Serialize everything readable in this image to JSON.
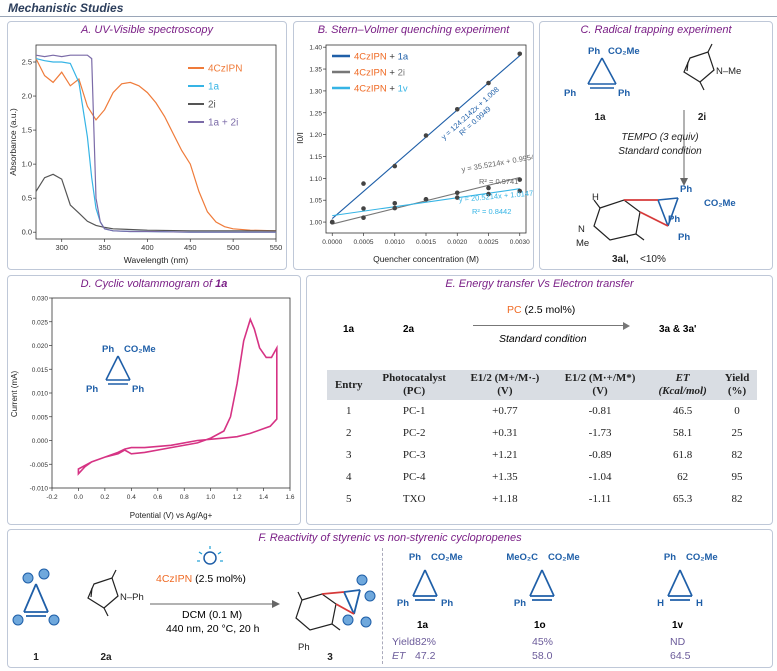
{
  "header": {
    "title": "Mechanistic Studies"
  },
  "panel_a": {
    "title": "A. UV-Visible spectroscopy"
  },
  "panel_b": {
    "title": "B. Stern–Volmer quenching experiment"
  },
  "panel_c": {
    "title": "C. Radical trapping experiment",
    "sub1": "Ph",
    "sub2": "CO₂Me",
    "sub3": "Ph",
    "sub4": "Ph",
    "label_1a": "1a",
    "label_2i": "2i",
    "n_me": "N–Me",
    "reagent": "TEMPO (3 equiv)",
    "condition": "Standard condition",
    "prod_ph1": "Ph",
    "prod_co2me": "CO₂Me",
    "prod_ph2": "Ph",
    "prod_ph3": "Ph",
    "prod_h": "H",
    "prod_n": "N",
    "prod_me": "Me",
    "product_label": "3al,",
    "product_yield": "<10%"
  },
  "panel_d": {
    "title_prefix": "D. Cyclic voltammogram of ",
    "title_bold": "1a",
    "sub1": "Ph",
    "sub2": "CO₂Me",
    "sub3": "Ph",
    "sub4": "Ph"
  },
  "panel_e": {
    "title": "E. Energy transfer Vs Electron transfer",
    "reactant1": "1a",
    "reactant2": "2a",
    "pc_label": "PC",
    "pc_amount": " (2.5 mol%)",
    "condition": "Standard condition",
    "product": "3a & 3a'",
    "table": {
      "headers": [
        {
          "l1": "Entry",
          "l2": ""
        },
        {
          "l1": "Photocatalyst",
          "l2": "(PC)"
        },
        {
          "l1": "E1/2 (M+/M·-)",
          "l2": "(V)"
        },
        {
          "l1": "E1/2 (M·+/M*)",
          "l2": "(V)"
        },
        {
          "l1": "ET",
          "l2": "(Kcal/mol)"
        },
        {
          "l1": "Yield",
          "l2": "(%)"
        }
      ],
      "rows": [
        [
          "1",
          "PC-1",
          "+0.77",
          "-0.81",
          "46.5",
          "0"
        ],
        [
          "2",
          "PC-2",
          "+0.31",
          "-1.73",
          "58.1",
          "25"
        ],
        [
          "3",
          "PC-3",
          "+1.21",
          "-0.89",
          "61.8",
          "82"
        ],
        [
          "4",
          "PC-4",
          "+1.35",
          "-1.04",
          "62",
          "95"
        ],
        [
          "5",
          "TXO",
          "+1.18",
          "-1.11",
          "65.3",
          "82"
        ]
      ]
    }
  },
  "panel_f": {
    "title": "F. Reactivity of styrenic vs non-styrenic cyclopropenes",
    "catalyst": "4CzIPN",
    "catalyst_amount": " (2.5 mol%)",
    "solvent": "DCM (0.1 M)",
    "conditions": "440 nm, 20 °C, 20 h",
    "label_1": "1",
    "label_2a": "2a",
    "label_3": "3",
    "n_ph": "N–Ph",
    "n_ph2": "Ph",
    "yield_label": "Yield",
    "et_label": "ET",
    "compounds": [
      {
        "label": "1a",
        "top_left": "Ph",
        "top_right": "CO₂Me",
        "bottom_left": "Ph",
        "bottom_right": "Ph",
        "yield": "82%",
        "et": "47.2"
      },
      {
        "label": "1o",
        "top_left": "MeO₂C",
        "top_right": "CO₂Me",
        "bottom_left": "Ph",
        "bottom_right": "",
        "yield": "45%",
        "et": "58.0"
      },
      {
        "label": "1v",
        "top_left": "Ph",
        "top_right": "CO₂Me",
        "bottom_left": "H",
        "bottom_right": "H",
        "yield": "ND",
        "et": "64.5"
      }
    ]
  },
  "chart_data": [
    {
      "type": "line",
      "title": "A. UV-Visible spectroscopy",
      "xlabel": "Wavelength (nm)",
      "ylabel": "Absorbance (a.u.)",
      "xlim": [
        270,
        550
      ],
      "ylim": [
        -0.1,
        2.75
      ],
      "xticks": [
        "300",
        "350",
        "400",
        "450",
        "500",
        "550"
      ],
      "yticks": [
        "0.0",
        "0.5",
        "1.0",
        "1.5",
        "2.0",
        "2.5"
      ],
      "series": [
        {
          "name": "4CzIPN",
          "color": "#ef7b3a",
          "x": [
            270,
            280,
            290,
            300,
            310,
            320,
            330,
            340,
            350,
            360,
            370,
            380,
            390,
            400,
            410,
            420,
            430,
            440,
            450,
            460,
            470,
            480,
            490,
            500,
            520,
            550
          ],
          "y": [
            2.55,
            2.3,
            2.2,
            2.35,
            2.15,
            2.25,
            1.85,
            1.65,
            1.8,
            2.05,
            2.18,
            2.2,
            2.15,
            2.05,
            1.9,
            1.7,
            1.45,
            1.2,
            1.0,
            0.6,
            0.3,
            0.15,
            0.08,
            0.05,
            0.03,
            0.02
          ]
        },
        {
          "name": "1a",
          "color": "#36b4e5",
          "x": [
            270,
            280,
            290,
            300,
            310,
            320,
            330,
            335,
            340,
            345,
            350,
            360,
            380,
            400,
            450,
            550
          ],
          "y": [
            2.55,
            2.52,
            2.5,
            2.5,
            2.48,
            2.2,
            1.4,
            0.8,
            0.35,
            0.15,
            0.05,
            0.02,
            0.01,
            0.01,
            0.0,
            0.0
          ]
        },
        {
          "name": "2i",
          "color": "#555555",
          "x": [
            270,
            280,
            290,
            300,
            310,
            320,
            330,
            340,
            350,
            360,
            380,
            400,
            450,
            550
          ],
          "y": [
            0.6,
            0.8,
            0.85,
            0.78,
            0.4,
            0.28,
            0.16,
            0.1,
            0.07,
            0.05,
            0.04,
            0.03,
            0.02,
            0.02
          ]
        },
        {
          "name": "1a + 2i",
          "color": "#7b6ba8",
          "x": [
            270,
            280,
            290,
            300,
            310,
            320,
            330,
            335,
            340,
            345,
            350,
            360,
            380,
            400,
            450,
            550
          ],
          "y": [
            2.6,
            2.58,
            2.6,
            2.58,
            2.6,
            2.6,
            2.6,
            2.55,
            0.5,
            0.15,
            0.05,
            0.02,
            0.01,
            0.01,
            0.0,
            0.0
          ]
        }
      ]
    },
    {
      "type": "scatter",
      "title": "B. Stern–Volmer quenching experiment",
      "xlabel": "Quencher concentration (M)",
      "ylabel": "I0/I",
      "xlim": [
        -0.0001,
        0.0031
      ],
      "ylim": [
        0.975,
        1.405
      ],
      "xticks": [
        "0.0000",
        "0.0005",
        "0.0010",
        "0.0015",
        "0.0020",
        "0.0025",
        "0.0030"
      ],
      "yticks": [
        "1.00",
        "1.05",
        "1.10",
        "1.15",
        "1.20",
        "1.25",
        "1.30",
        "1.35",
        "1.40"
      ],
      "series": [
        {
          "name": "4CzIPN + 1a",
          "color": "#1f5fa8",
          "x": [
            0,
            0.0005,
            0.001,
            0.0015,
            0.002,
            0.0025,
            0.003
          ],
          "y": [
            1.0,
            1.088,
            1.128,
            1.198,
            1.258,
            1.318,
            1.385
          ],
          "fit": {
            "slope": 124.2142,
            "intercept": 1.008,
            "equation": "y = 124.2142x + 1.008",
            "r2": "R² = 0.9949"
          }
        },
        {
          "name": "4CzIPN + 2i",
          "color": "#777777",
          "x": [
            0,
            0.0005,
            0.001,
            0.0015,
            0.002,
            0.0025,
            0.003
          ],
          "y": [
            1.0,
            1.031,
            1.043,
            1.052,
            1.067,
            1.078,
            1.097
          ],
          "fit": {
            "slope": 35.5214,
            "intercept": 0.9954,
            "equation": "y = 35.5214x + 0.9954",
            "r2": "R² = 0.9741"
          }
        },
        {
          "name": "4CzIPN + 1v",
          "color": "#36b4e5",
          "x": [
            0,
            0.0005,
            0.001,
            0.0015,
            0.002,
            0.0025,
            0.003
          ],
          "y": [
            1.0,
            1.01,
            1.032,
            1.052,
            1.056,
            1.064,
            1.071
          ],
          "fit": {
            "slope": 20.5214,
            "intercept": 1.0147,
            "equation": "y = 20.5214x + 1.0147",
            "r2": "R² = 0.8442"
          }
        }
      ]
    },
    {
      "type": "line",
      "title": "D. Cyclic voltammogram of 1a",
      "xlabel": "Potential (V) vs Ag/Ag+",
      "ylabel": "Current (mA)",
      "xlim": [
        -0.2,
        1.6
      ],
      "ylim": [
        -0.01,
        0.03
      ],
      "xticks": [
        "-0.2",
        "0.0",
        "0.2",
        "0.4",
        "0.6",
        "0.8",
        "1.0",
        "1.2",
        "1.4",
        "1.6"
      ],
      "yticks": [
        "-0.010",
        "-0.005",
        "0.000",
        "0.005",
        "0.010",
        "0.015",
        "0.020",
        "0.025",
        "0.030"
      ],
      "series": [
        {
          "name": "1a",
          "color": "#d63384",
          "x": [
            0.0,
            0.05,
            0.1,
            0.2,
            0.3,
            0.35,
            0.4,
            0.5,
            0.7,
            0.9,
            1.0,
            1.1,
            1.15,
            1.2,
            1.25,
            1.3,
            1.33,
            1.37,
            1.42,
            1.46,
            1.5,
            1.5,
            1.45,
            1.4,
            1.3,
            1.2,
            1.1,
            0.9,
            0.7,
            0.5,
            0.4,
            0.35,
            0.3,
            0.2,
            0.1,
            0.0
          ],
          "y": [
            -0.007,
            -0.0055,
            -0.0045,
            -0.0035,
            -0.0028,
            -0.002,
            -0.0028,
            -0.0025,
            -0.0015,
            -0.0005,
            0.0005,
            0.002,
            0.005,
            0.012,
            0.021,
            0.0255,
            0.0235,
            0.0195,
            0.0175,
            0.0175,
            0.0195,
            0.0045,
            0.003,
            0.0025,
            0.0015,
            0.0008,
            0.0005,
            0.0,
            -0.001,
            -0.0015,
            -0.0015,
            -0.0018,
            -0.0025,
            -0.0035,
            -0.0045,
            -0.006
          ]
        }
      ]
    }
  ]
}
